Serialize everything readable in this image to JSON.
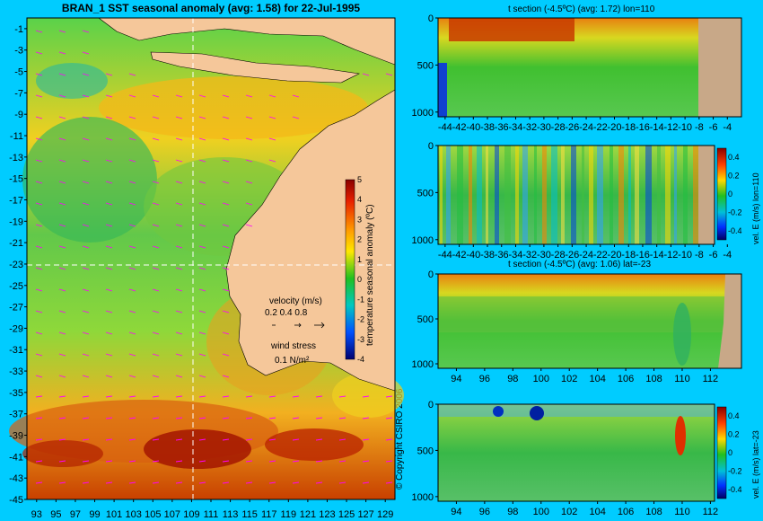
{
  "title": "BRAN_1 SST seasonal anomaly (avg: 1.58) for 22-Jul-1995",
  "copyright": "© Copyright CSIRO 2006",
  "colors": {
    "background": "#00ccff",
    "land": "#f5c79a",
    "bathy": "#c8a888",
    "guide_line": "#ffffff",
    "vector": "#ff00ff"
  },
  "chart_data": [
    {
      "type": "heatmap",
      "name": "map",
      "title": "BRAN_1 SST seasonal anomaly (avg: 1.58) for 22-Jul-1995",
      "x_ticks": [
        "93",
        "95",
        "97",
        "99",
        "101",
        "103",
        "105",
        "107",
        "109",
        "111",
        "113",
        "115",
        "117",
        "119",
        "121",
        "123",
        "125",
        "127",
        "129"
      ],
      "y_ticks": [
        "-1",
        "-3",
        "-5",
        "-7",
        "-9",
        "-11",
        "-13",
        "-15",
        "-17",
        "-19",
        "-21",
        "-23",
        "-25",
        "-27",
        "-29",
        "-31",
        "-33",
        "-35",
        "-37",
        "-39",
        "-41",
        "-43",
        "-45"
      ],
      "xlim": [
        92,
        130
      ],
      "ylim": [
        -45,
        0
      ],
      "colorbar": {
        "label": "temperature seasonal anomaly (ºC)",
        "ticks": [
          "5",
          "4",
          "3",
          "2",
          "1",
          "0",
          "-1",
          "-2",
          "-3",
          "-4"
        ],
        "range": [
          -4,
          5
        ]
      },
      "velocity_legend": {
        "title": "velocity (m/s)",
        "values": "0.2 0.4 0.8"
      },
      "wind_legend": {
        "title": "wind stress",
        "value": "0.1 N/m²"
      },
      "guide_lines": {
        "lon": 110,
        "lat": -23
      }
    },
    {
      "type": "heatmap",
      "name": "t-section-lon110",
      "title": "t section (-4.5ºC) (avg: 1.72) lon=110",
      "x_ticks": [
        "-44",
        "-42",
        "-40",
        "-38",
        "-36",
        "-34",
        "-32",
        "-30",
        "-28",
        "-26",
        "-24",
        "-22",
        "-20",
        "-18",
        "-16",
        "-14",
        "-12",
        "-10",
        "-8",
        "-6",
        "-4"
      ],
      "y_ticks": [
        "0",
        "500",
        "1000"
      ],
      "xlim": [
        -45,
        -2
      ],
      "ylim": [
        1050,
        0
      ]
    },
    {
      "type": "heatmap",
      "name": "vel-section-lon110",
      "title": "",
      "x_ticks": [
        "-44",
        "-42",
        "-40",
        "-38",
        "-36",
        "-34",
        "-32",
        "-30",
        "-28",
        "-26",
        "-24",
        "-22",
        "-20",
        "-18",
        "-16",
        "-14",
        "-12",
        "-10",
        "-8",
        "-6",
        "-4"
      ],
      "y_ticks": [
        "0",
        "500",
        "1000"
      ],
      "xlim": [
        -45,
        -2
      ],
      "ylim": [
        1050,
        0
      ],
      "colorbar": {
        "label": "vel. E (m/s) lon=110",
        "ticks": [
          "0.4",
          "0.2",
          "0",
          "-0.2",
          "-0.4"
        ],
        "range": [
          -0.5,
          0.5
        ]
      }
    },
    {
      "type": "heatmap",
      "name": "t-section-lat-23",
      "title": "t section (-4.5ºC) (avg: 1.06) lat=-23",
      "x_ticks": [
        "94",
        "96",
        "98",
        "100",
        "102",
        "104",
        "106",
        "108",
        "110",
        "112"
      ],
      "y_ticks": [
        "0",
        "500",
        "1000"
      ],
      "xlim": [
        92.7,
        114.2
      ],
      "ylim": [
        1050,
        0
      ]
    },
    {
      "type": "heatmap",
      "name": "vel-section-lat-23",
      "title": "",
      "x_ticks": [
        "94",
        "96",
        "98",
        "100",
        "102",
        "104",
        "106",
        "108",
        "110",
        "112"
      ],
      "y_ticks": [
        "0",
        "500",
        "1000"
      ],
      "xlim": [
        92.7,
        114.2
      ],
      "ylim": [
        1050,
        0
      ],
      "colorbar": {
        "label": "vel. E (m/s) lat=-23",
        "ticks": [
          "0.4",
          "0.2",
          "0",
          "-0.2",
          "-0.4"
        ],
        "range": [
          -0.5,
          0.5
        ]
      }
    }
  ]
}
